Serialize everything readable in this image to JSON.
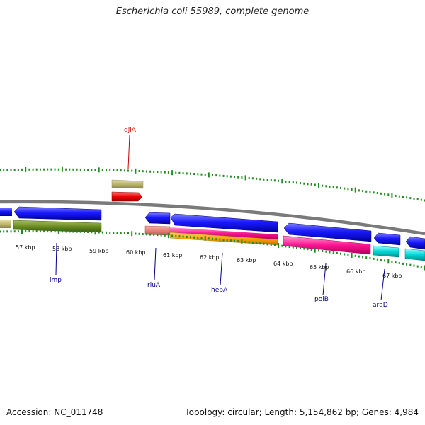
{
  "title": "Escherichia coli 55989, complete genome",
  "footer": {
    "accession_label": "Accession:",
    "accession": "NC_011748",
    "topology_label": "Topology:",
    "topology": "circular",
    "length_label": "Length:",
    "length": "5,154,862 bp",
    "genes_label": "Genes:",
    "genes": "4,984"
  },
  "colors": {
    "backbone": "#808080",
    "tick": "#228b22",
    "forward_cds": "#0000ee",
    "gene_label_blue": "#00008b",
    "gene_label_red": "#cc0000"
  },
  "scale_labels": [
    "57 kbp",
    "58 kbp",
    "59 kbp",
    "60 kbp",
    "61 kbp",
    "62 kbp",
    "63 kbp",
    "64 kbp",
    "65 kbp",
    "66 kbp",
    "67 kbp"
  ],
  "gene_labels": [
    {
      "name": "djlA",
      "color": "#cc0000"
    },
    {
      "name": "imp",
      "color": "#00008b"
    },
    {
      "name": "rluA",
      "color": "#00008b"
    },
    {
      "name": "hepA",
      "color": "#00008b"
    },
    {
      "name": "polB",
      "color": "#00008b"
    },
    {
      "name": "araD",
      "color": "#00008b"
    }
  ]
}
